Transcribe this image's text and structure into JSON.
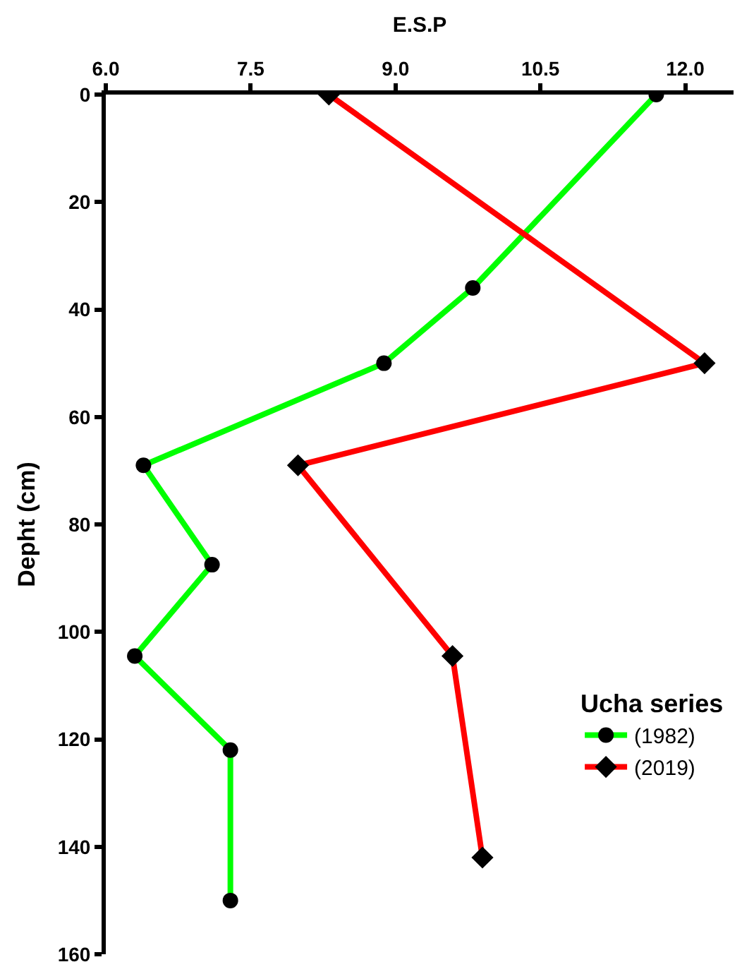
{
  "chart_data": {
    "type": "line",
    "xlabel": "E.S.P",
    "ylabel": "Depht (cm)",
    "legend_title": "Ucha series",
    "xlim": [
      6.0,
      12.5
    ],
    "xticks": [
      {
        "value": 6.0,
        "label": "6.0"
      },
      7.5,
      {
        "value": 9.0,
        "label": "9.0"
      },
      10.5,
      {
        "value": 12.0,
        "label": "12.0"
      }
    ],
    "ylim": [
      160,
      0
    ],
    "yticks": [
      0,
      20,
      40,
      60,
      80,
      100,
      120,
      140,
      160
    ],
    "series": [
      {
        "name": "(1982)",
        "color": "#00ff00",
        "marker": "circle",
        "x": [
          11.7,
          9.8,
          8.88,
          6.39,
          7.1,
          6.3,
          7.29,
          7.29
        ],
        "values": [
          0,
          36,
          50,
          69,
          87.5,
          104.5,
          122,
          150
        ]
      },
      {
        "name": "(2019)",
        "color": "#ff0000",
        "marker": "diamond",
        "x": [
          8.31,
          12.2,
          7.99,
          9.59,
          9.9
        ],
        "values": [
          0,
          50,
          69,
          104.5,
          142
        ]
      }
    ],
    "legend": "bottom right"
  }
}
